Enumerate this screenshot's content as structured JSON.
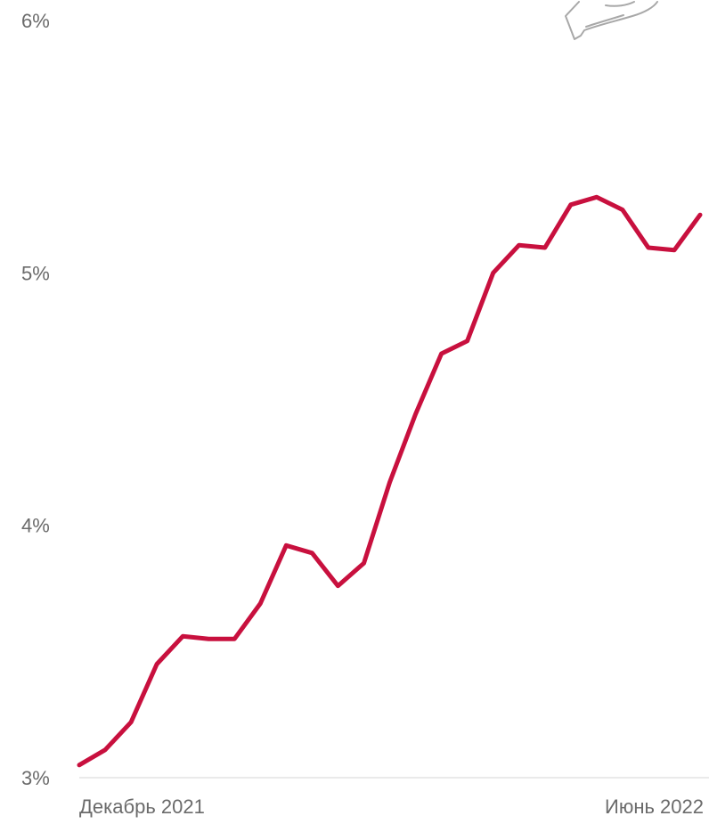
{
  "chart_data": {
    "type": "line",
    "title": "",
    "xlabel": "",
    "ylabel": "",
    "x_tick_labels": [
      "Декабрь 2021",
      "Июнь 2022"
    ],
    "y_tick_labels": [
      "3%",
      "4%",
      "5%",
      "6%"
    ],
    "y_ticks": [
      3,
      4,
      5,
      6
    ],
    "ylim": [
      3,
      6
    ],
    "grid": false,
    "series": [
      {
        "values": [
          3.05,
          3.11,
          3.22,
          3.45,
          3.56,
          3.55,
          3.55,
          3.69,
          3.92,
          3.89,
          3.76,
          3.85,
          4.17,
          4.44,
          4.68,
          4.73,
          5.0,
          5.11,
          5.1,
          5.27,
          5.3,
          5.25,
          5.1,
          5.09,
          5.23
        ]
      }
    ]
  },
  "colors": {
    "line": "#c8103e",
    "tick_text": "#6b6b6b",
    "axis": "#d4d4d4",
    "icon_stroke": "#a8a8a8"
  },
  "icons": {
    "decor": "hand-icon"
  }
}
